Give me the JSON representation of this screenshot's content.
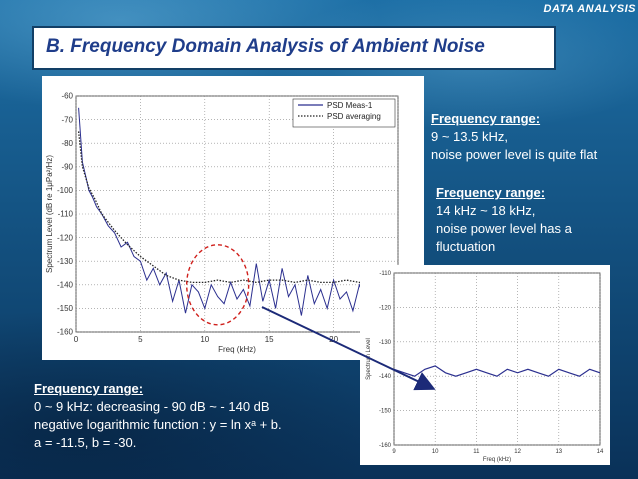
{
  "header": {
    "tag": "DATA ANALYSIS"
  },
  "slide": {
    "title": "B. Frequency Domain Analysis of Ambient Noise"
  },
  "notes": [
    {
      "heading": "Frequency range:",
      "lines": [
        "9 ~ 13.5 kHz,",
        "noise power level is quite flat"
      ]
    },
    {
      "heading": "Frequency range:",
      "lines": [
        "14 kHz ~ 18 kHz,",
        "noise power level has a",
        "fluctuation"
      ]
    },
    {
      "heading": "Frequency range:",
      "lines": [
        "0 ~ 9 kHz: decreasing - 90 dB ~ - 140 dB",
        "negative logarithmic function : y = ln xᵃ + b.",
        "a = -11.5, b = -30."
      ]
    }
  ],
  "colors": {
    "series_line": "#2b2f8f",
    "highlight_circle": "#d0201c",
    "arrow": "#1c2a78"
  },
  "chart_data": [
    {
      "type": "line",
      "xlabel": "Freq (kHz)",
      "ylabel": "Spectrum Level (dB re 1μPa²/Hz)",
      "xlim": [
        0,
        25
      ],
      "ylim": [
        -160,
        -60
      ],
      "xticks": [
        0,
        5,
        10,
        15,
        20,
        25
      ],
      "yticks": [
        -60,
        -70,
        -80,
        -90,
        -100,
        -110,
        -120,
        -130,
        -140,
        -150,
        -160
      ],
      "grid": true,
      "legend": "top-right",
      "series": [
        {
          "name": "PSD Meas-1",
          "style": "solid",
          "x": [
            0.2,
            0.5,
            0.8,
            1.0,
            1.3,
            1.6,
            2.0,
            2.5,
            3.0,
            3.5,
            4.0,
            4.5,
            5.0,
            5.5,
            6.0,
            6.5,
            7.0,
            7.5,
            8.0,
            8.5,
            9.0,
            9.5,
            10.0,
            10.5,
            11.0,
            11.5,
            12.0,
            12.5,
            13.0,
            13.5,
            14.0,
            14.5,
            15.0,
            15.5,
            16.0,
            16.5,
            17.0,
            17.5,
            18.0,
            18.5,
            19.0,
            19.5,
            20.0,
            20.5,
            21.0,
            21.5,
            22.0,
            22.5,
            23.0,
            23.5,
            24.0
          ],
          "y": [
            -65,
            -88,
            -95,
            -100,
            -103,
            -107,
            -110,
            -115,
            -118,
            -124,
            -122,
            -128,
            -130,
            -138,
            -133,
            -140,
            -135,
            -147,
            -138,
            -152,
            -140,
            -143,
            -150,
            -140,
            -145,
            -148,
            -139,
            -146,
            -142,
            -149,
            -131,
            -147,
            -138,
            -150,
            -133,
            -145,
            -140,
            -153,
            -136,
            -148,
            -142,
            -150,
            -138,
            -146,
            -143,
            -151,
            -140,
            -147,
            -144,
            -150,
            -143
          ]
        },
        {
          "name": "PSD averaging",
          "style": "dotted",
          "x": [
            0.2,
            0.5,
            1.0,
            1.5,
            2.0,
            3.0,
            4.0,
            5.0,
            6.0,
            7.0,
            8.0,
            9.0,
            10.0,
            11.0,
            12.0,
            13.0,
            14.0,
            15.0,
            16.0,
            17.0,
            18.0,
            19.0,
            20.0,
            21.0,
            22.0,
            23.0,
            24.0
          ],
          "y": [
            -75,
            -90,
            -99,
            -104,
            -110,
            -117,
            -123,
            -128,
            -132,
            -136,
            -138,
            -139,
            -139,
            -138,
            -139,
            -138,
            -139,
            -138,
            -138,
            -139,
            -138,
            -139,
            -139,
            -138,
            -139,
            -139,
            -139
          ]
        }
      ],
      "annotation": "dashed-circle"
    },
    {
      "type": "line",
      "xlabel": "Freq (kHz)",
      "ylabel": "Spectrum Level",
      "xlim": [
        9,
        14
      ],
      "ylim": [
        -160,
        -110
      ],
      "xticks": [
        9,
        10,
        11,
        12,
        13,
        14
      ],
      "yticks": [
        -110,
        -120,
        -130,
        -140,
        -150,
        -160
      ],
      "grid": true,
      "series": [
        {
          "x": [
            9.0,
            9.25,
            9.5,
            9.75,
            10.0,
            10.25,
            10.5,
            10.75,
            11.0,
            11.25,
            11.5,
            11.75,
            12.0,
            12.25,
            12.5,
            12.75,
            13.0,
            13.25,
            13.5,
            13.75,
            14.0
          ],
          "y": [
            -138,
            -139,
            -140,
            -138,
            -137,
            -139,
            -140,
            -139,
            -138,
            -139,
            -140,
            -138,
            -139,
            -138,
            -139,
            -140,
            -138,
            -139,
            -140,
            -138,
            -139
          ]
        }
      ]
    }
  ]
}
